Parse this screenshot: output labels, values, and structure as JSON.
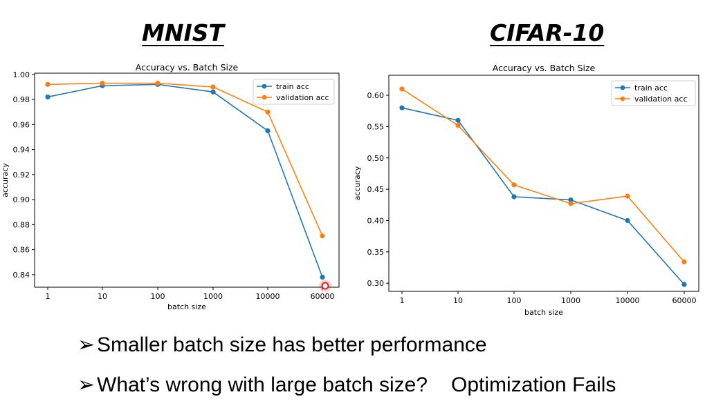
{
  "headings": {
    "left": "MNIST",
    "right": "CIFAR-10"
  },
  "bullets": {
    "arrow": "➢",
    "first": "Smaller batch size has better performance",
    "second": "What’s wrong with large batch size?",
    "second_extra": "Optimization Fails"
  },
  "colors": {
    "train": "#1f77b4",
    "validation": "#ff7f0e",
    "highlight": "#e0201a"
  },
  "chart_data": [
    {
      "type": "line",
      "title": "Accuracy vs. Batch Size",
      "xlabel": "batch size",
      "ylabel": "accuracy",
      "categories": [
        "1",
        "10",
        "100",
        "1000",
        "10000",
        "60000"
      ],
      "ylim": [
        0.83,
        1.001
      ],
      "yticks": [
        "0.84",
        "0.86",
        "0.88",
        "0.90",
        "0.92",
        "0.94",
        "0.96",
        "0.98",
        "1.00"
      ],
      "legend": "top-right",
      "grid": false,
      "series": [
        {
          "name": "train acc",
          "values": [
            0.982,
            0.991,
            0.992,
            0.986,
            0.955,
            0.838
          ]
        },
        {
          "name": "validation acc",
          "values": [
            0.992,
            0.993,
            0.993,
            0.99,
            0.97,
            0.871
          ]
        }
      ]
    },
    {
      "type": "line",
      "title": "Accuracy vs. Batch Size",
      "xlabel": "batch size",
      "ylabel": "accuracy",
      "categories": [
        "1",
        "10",
        "100",
        "1000",
        "10000",
        "60000"
      ],
      "ylim": [
        0.287,
        0.632
      ],
      "yticks": [
        "0.30",
        "0.35",
        "0.40",
        "0.45",
        "0.50",
        "0.55",
        "0.60"
      ],
      "legend": "top-right",
      "grid": false,
      "series": [
        {
          "name": "train acc",
          "values": [
            0.58,
            0.56,
            0.438,
            0.433,
            0.4,
            0.298
          ]
        },
        {
          "name": "validation acc",
          "values": [
            0.61,
            0.552,
            0.457,
            0.427,
            0.439,
            0.334
          ]
        }
      ]
    }
  ]
}
